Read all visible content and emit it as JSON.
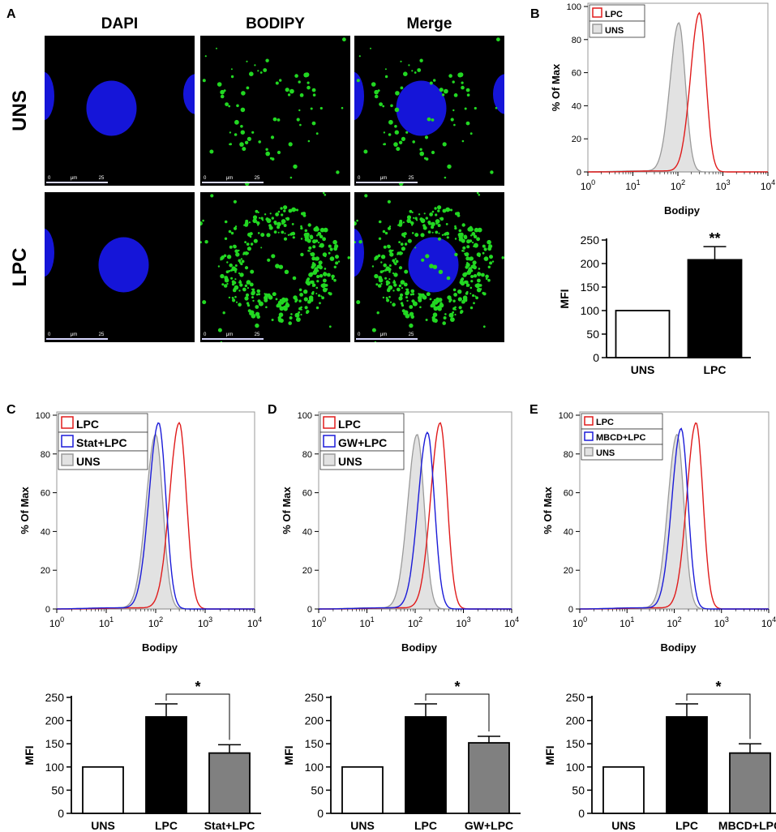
{
  "panel_letters": [
    "A",
    "B",
    "C",
    "D",
    "E"
  ],
  "microscopy": {
    "column_headers": [
      "DAPI",
      "BODIPY",
      "Merge"
    ],
    "row_labels": [
      "UNS",
      "LPC"
    ],
    "scale_label": "μm",
    "scale_value": "25",
    "scale_zero": "0",
    "colors": {
      "nucleus": "#1515d8",
      "lipid": "#22d822",
      "background": "#000000"
    }
  },
  "chart_data": [
    {
      "id": "B-hist",
      "type": "area",
      "ylabel": "% Of Max",
      "xlabel": "Bodipy",
      "xscale": "log",
      "xlim": [
        1,
        10000
      ],
      "ylim": [
        0,
        100
      ],
      "yticks": [
        0,
        20,
        40,
        60,
        80,
        100
      ],
      "xticks": [
        {
          "b": "10",
          "e": "0"
        },
        {
          "b": "10",
          "e": "1"
        },
        {
          "b": "10",
          "e": "2"
        },
        {
          "b": "10",
          "e": "3"
        },
        {
          "b": "10",
          "e": "4"
        }
      ],
      "legend": "top-left",
      "series": [
        {
          "name": "LPC",
          "peak": 300,
          "height": 96,
          "color": "#e01b1b",
          "filled": false
        },
        {
          "name": "UNS",
          "peak": 105,
          "height": 90,
          "color": "#9a9a9a",
          "filled": true
        }
      ]
    },
    {
      "id": "B-bar",
      "type": "bar",
      "ylabel": "MFI",
      "ylim": [
        0,
        250
      ],
      "yticks": [
        0,
        50,
        100,
        150,
        200,
        250
      ],
      "categories": [
        "UNS",
        "LPC"
      ],
      "values": [
        100,
        208
      ],
      "errors": [
        0,
        28
      ],
      "colors": [
        "#ffffff",
        "#000000"
      ],
      "annotation": "**"
    },
    {
      "id": "C-hist",
      "type": "area",
      "ylabel": "% Of Max",
      "xlabel": "Bodipy",
      "xscale": "log",
      "xlim": [
        1,
        10000
      ],
      "ylim": [
        0,
        100
      ],
      "yticks": [
        0,
        20,
        40,
        60,
        80,
        100
      ],
      "xticks": [
        {
          "b": "10",
          "e": "0"
        },
        {
          "b": "10",
          "e": "1"
        },
        {
          "b": "10",
          "e": "2"
        },
        {
          "b": "10",
          "e": "3"
        },
        {
          "b": "10",
          "e": "4"
        }
      ],
      "legend": "top-left",
      "series": [
        {
          "name": "LPC",
          "peak": 300,
          "height": 96,
          "color": "#e01b1b",
          "filled": false
        },
        {
          "name": "Stat+LPC",
          "peak": 115,
          "height": 96,
          "color": "#1b1bd8",
          "filled": false
        },
        {
          "name": "UNS",
          "peak": 100,
          "height": 90,
          "color": "#9a9a9a",
          "filled": true
        }
      ]
    },
    {
      "id": "D-hist",
      "type": "area",
      "ylabel": "% Of Max",
      "xlabel": "Bodipy",
      "xscale": "log",
      "xlim": [
        1,
        10000
      ],
      "ylim": [
        0,
        100
      ],
      "yticks": [
        0,
        20,
        40,
        60,
        80,
        100
      ],
      "xticks": [
        {
          "b": "10",
          "e": "0"
        },
        {
          "b": "10",
          "e": "1"
        },
        {
          "b": "10",
          "e": "2"
        },
        {
          "b": "10",
          "e": "3"
        },
        {
          "b": "10",
          "e": "4"
        }
      ],
      "legend": "top-left",
      "series": [
        {
          "name": "LPC",
          "peak": 330,
          "height": 96,
          "color": "#e01b1b",
          "filled": false
        },
        {
          "name": "GW+LPC",
          "peak": 180,
          "height": 91,
          "color": "#1b1bd8",
          "filled": false
        },
        {
          "name": "UNS",
          "peak": 110,
          "height": 90,
          "color": "#9a9a9a",
          "filled": true
        }
      ]
    },
    {
      "id": "E-hist",
      "type": "area",
      "ylabel": "% Of Max",
      "xlabel": "Bodipy",
      "xscale": "log",
      "xlim": [
        1,
        10000
      ],
      "ylim": [
        0,
        100
      ],
      "yticks": [
        0,
        20,
        40,
        60,
        80,
        100
      ],
      "xticks": [
        {
          "b": "10",
          "e": "0"
        },
        {
          "b": "10",
          "e": "1"
        },
        {
          "b": "10",
          "e": "2"
        },
        {
          "b": "10",
          "e": "3"
        },
        {
          "b": "10",
          "e": "4"
        }
      ],
      "legend": "top-left",
      "series": [
        {
          "name": "LPC",
          "peak": 290,
          "height": 96,
          "color": "#e01b1b",
          "filled": false
        },
        {
          "name": "MBCD+LPC",
          "peak": 140,
          "height": 93,
          "color": "#1b1bd8",
          "filled": false
        },
        {
          "name": "UNS",
          "peak": 115,
          "height": 90,
          "color": "#9a9a9a",
          "filled": true
        }
      ]
    },
    {
      "id": "C-bar",
      "type": "bar",
      "ylabel": "MFI",
      "ylim": [
        0,
        250
      ],
      "yticks": [
        0,
        50,
        100,
        150,
        200,
        250
      ],
      "categories": [
        "UNS",
        "LPC",
        "Stat+LPC"
      ],
      "values": [
        100,
        208,
        130
      ],
      "errors": [
        0,
        28,
        18
      ],
      "colors": [
        "#ffffff",
        "#000000",
        "#808080"
      ],
      "annotation": "*"
    },
    {
      "id": "D-bar",
      "type": "bar",
      "ylabel": "MFI",
      "ylim": [
        0,
        250
      ],
      "yticks": [
        0,
        50,
        100,
        150,
        200,
        250
      ],
      "categories": [
        "UNS",
        "LPC",
        "GW+LPC"
      ],
      "values": [
        100,
        208,
        152
      ],
      "errors": [
        0,
        28,
        14
      ],
      "colors": [
        "#ffffff",
        "#000000",
        "#808080"
      ],
      "annotation": "*"
    },
    {
      "id": "E-bar",
      "type": "bar",
      "ylabel": "MFI",
      "ylim": [
        0,
        250
      ],
      "yticks": [
        0,
        50,
        100,
        150,
        200,
        250
      ],
      "categories": [
        "UNS",
        "LPC",
        "MBCD+LPC"
      ],
      "values": [
        100,
        208,
        130
      ],
      "errors": [
        0,
        28,
        20
      ],
      "colors": [
        "#ffffff",
        "#000000",
        "#808080"
      ],
      "annotation": "*"
    }
  ]
}
